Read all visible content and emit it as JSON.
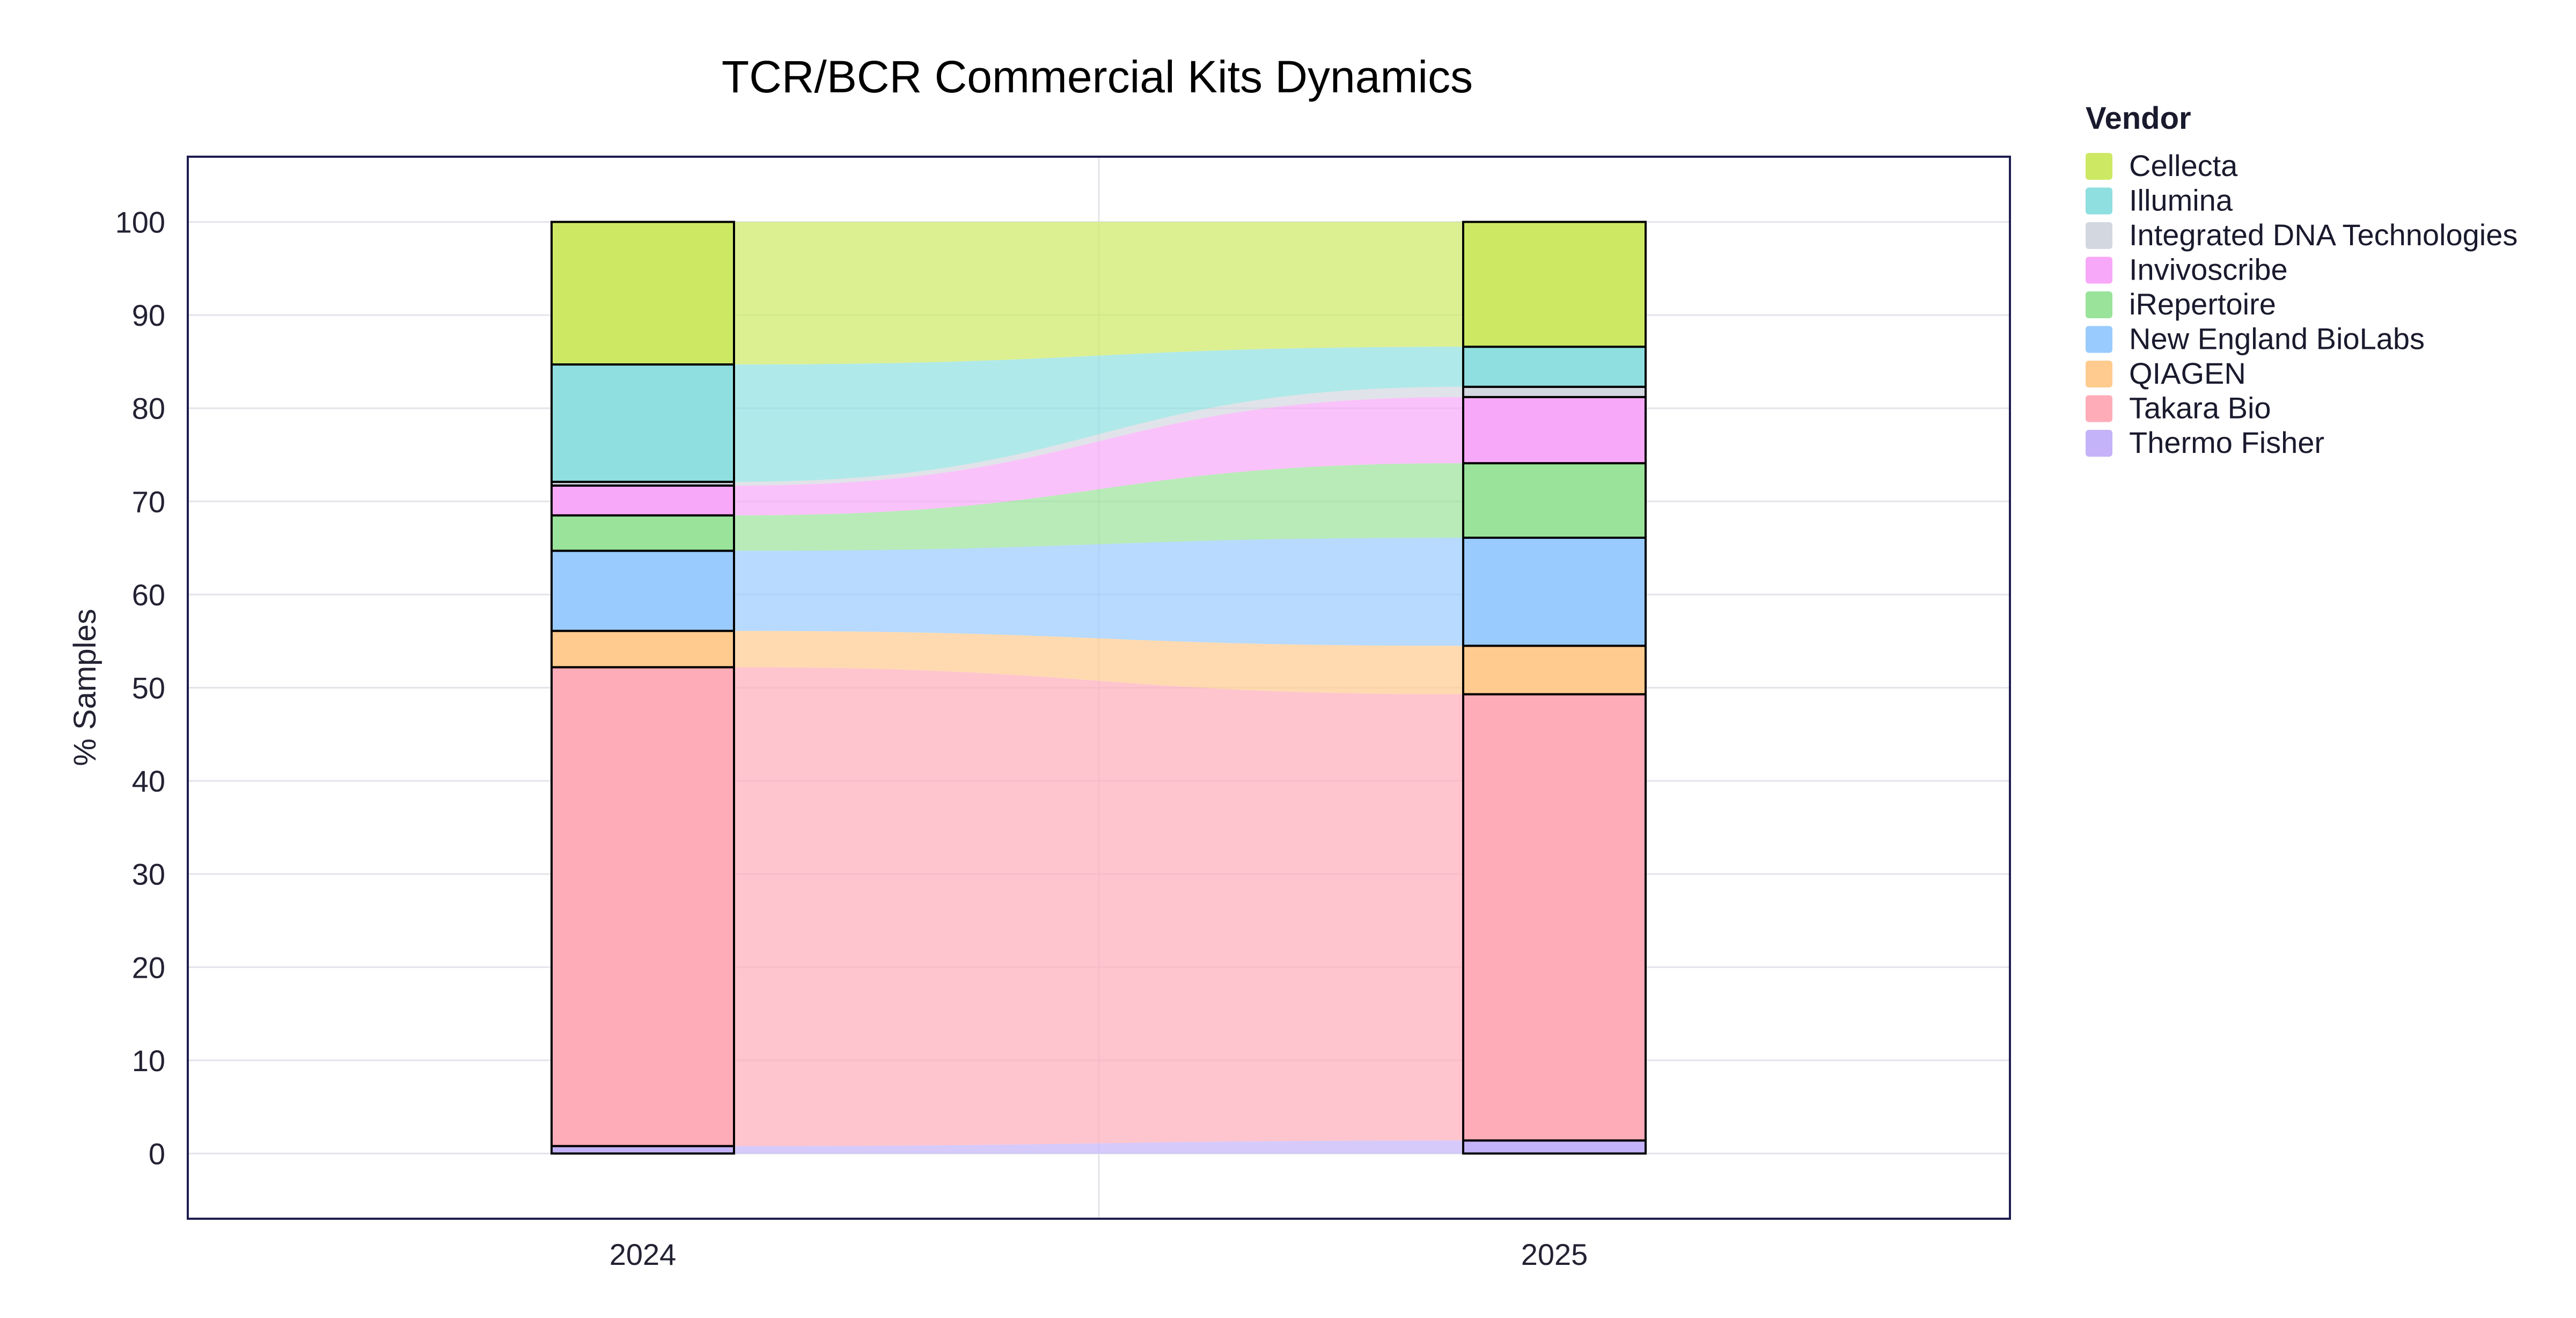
{
  "chart_data": {
    "type": "stacked-bar-flow",
    "title": "TCR/BCR Commercial Kits Dynamics",
    "xlabel": "",
    "ylabel": "% Samples",
    "categories": [
      "2024",
      "2025"
    ],
    "ylim": [
      -7,
      107
    ],
    "yticks": [
      0,
      10,
      20,
      30,
      40,
      50,
      60,
      70,
      80,
      90,
      100
    ],
    "grid": true,
    "legend": {
      "title": "Vendor",
      "position": "right"
    },
    "series": [
      {
        "name": "Thermo Fisher",
        "color": "#c5b3f9",
        "values": [
          0.8,
          1.4
        ]
      },
      {
        "name": "Takara Bio",
        "color": "#ffacb9",
        "values": [
          51.4,
          47.9
        ]
      },
      {
        "name": "QIAGEN",
        "color": "#ffcb8e",
        "values": [
          3.9,
          5.2
        ]
      },
      {
        "name": "New England BioLabs",
        "color": "#99cbfe",
        "values": [
          8.6,
          11.6
        ]
      },
      {
        "name": "iRepertoire",
        "color": "#9ae39a",
        "values": [
          3.8,
          8.0
        ]
      },
      {
        "name": "Invivoscribe",
        "color": "#f8a8f8",
        "values": [
          3.2,
          7.1
        ]
      },
      {
        "name": "Integrated DNA Technologies",
        "color": "#d3d7e0",
        "values": [
          0.4,
          1.1
        ]
      },
      {
        "name": "Illumina",
        "color": "#8fdfe0",
        "values": [
          12.6,
          4.3
        ]
      },
      {
        "name": "Cellecta",
        "color": "#cde964",
        "values": [
          15.3,
          13.4
        ]
      }
    ],
    "legend_order": [
      "Cellecta",
      "Illumina",
      "Integrated DNA Technologies",
      "Invivoscribe",
      "iRepertoire",
      "New England BioLabs",
      "QIAGEN",
      "Takara Bio",
      "Thermo Fisher"
    ]
  }
}
